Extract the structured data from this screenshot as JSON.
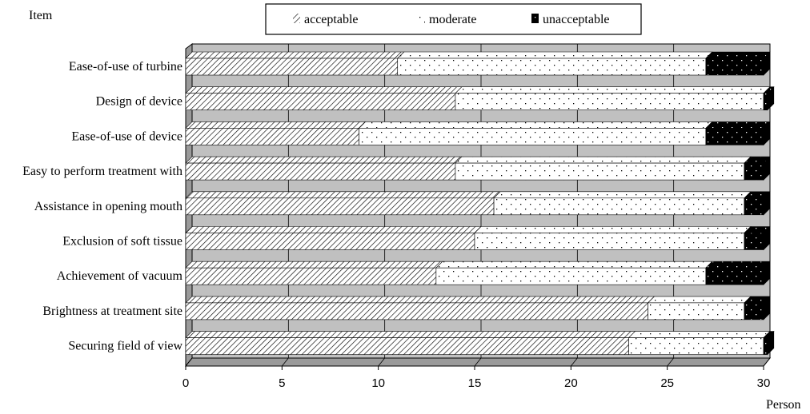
{
  "chart_data": {
    "type": "bar",
    "orientation": "horizontal",
    "stacked": true,
    "ylabel": "Item",
    "xlabel": "Person",
    "xlim": [
      0,
      30
    ],
    "xticks": [
      0,
      5,
      10,
      15,
      20,
      25,
      30
    ],
    "grid": true,
    "legend_position": "top-center",
    "categories": [
      "Ease-of-use of turbine",
      "Design of device",
      "Ease-of-use of device",
      "Easy to perform treatment with",
      "Assistance in opening mouth",
      "Exclusion of soft tissue",
      "Achievement of vacuum",
      "Brightness at treatment site",
      "Securing field of view"
    ],
    "series": [
      {
        "name": "acceptable",
        "pattern": "diagonal-hatch",
        "values": [
          11,
          14,
          9,
          14,
          16,
          15,
          13,
          24,
          23
        ]
      },
      {
        "name": "moderate",
        "pattern": "dots",
        "values": [
          16,
          16,
          18,
          15,
          13,
          14,
          14,
          5,
          7
        ]
      },
      {
        "name": "unacceptable",
        "pattern": "black-dots",
        "values": [
          3,
          0.2,
          3,
          1,
          1,
          1,
          3,
          1,
          0.2
        ]
      }
    ],
    "colors": {
      "plot_back": "#c0c0c0",
      "wall": "#9a9a9a",
      "bar_fill": "#ffffff",
      "dark": "#000000"
    }
  }
}
